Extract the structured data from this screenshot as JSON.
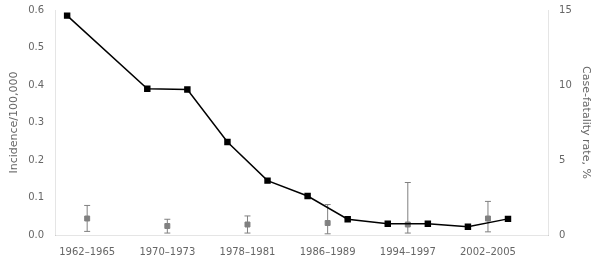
{
  "chart_data": {
    "type": "line",
    "xlim": [
      -0.3,
      12.0
    ],
    "xticks": [
      {
        "value": 0.5,
        "label": "1962–1965"
      },
      {
        "value": 2.5,
        "label": "1970–1973"
      },
      {
        "value": 4.5,
        "label": "1978–1981"
      },
      {
        "value": 6.5,
        "label": "1986–1989"
      },
      {
        "value": 8.5,
        "label": "1994–1997"
      },
      {
        "value": 10.5,
        "label": "2002–2005"
      }
    ],
    "ylabel": "Incidence/100,000",
    "y2label": "Case-fatality rate, %",
    "ylim": [
      0,
      0.6
    ],
    "yticks": [
      {
        "value": 0,
        "label": "0.0"
      },
      0.1,
      0.2,
      0.3,
      0.4,
      0.5,
      0.6
    ],
    "y2lim": [
      0,
      15
    ],
    "y2ticks": [
      0,
      5,
      10,
      15
    ],
    "grid": false,
    "series": [
      {
        "type": "line",
        "color": "#000000",
        "marker": "square",
        "x": [
          0,
          2,
          3,
          4,
          5,
          6,
          7,
          8,
          9,
          10,
          11
        ],
        "values": [
          0.585,
          0.39,
          0.388,
          0.248,
          0.145,
          0.104,
          0.042,
          0.03,
          0.03,
          0.022,
          0.043
        ]
      },
      {
        "type": "scatter",
        "axis": "y2",
        "color": "#808080",
        "marker": "square",
        "x": [
          0.5,
          2.5,
          4.5,
          6.5,
          8.5,
          10.5
        ],
        "values": [
          1.1,
          0.6,
          0.7,
          0.8,
          0.7,
          1.1
        ],
        "lower": [
          0.24,
          0.13,
          0.13,
          0.08,
          0.13,
          0.21
        ],
        "upper": [
          1.97,
          1.05,
          1.27,
          2.03,
          3.5,
          2.24
        ]
      }
    ]
  }
}
